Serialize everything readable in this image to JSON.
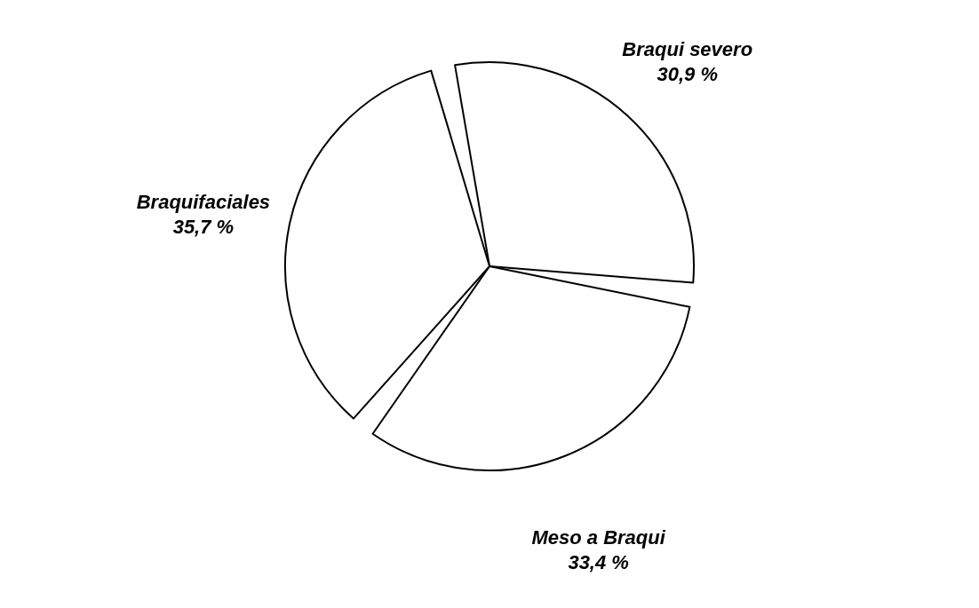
{
  "chart_data": {
    "type": "pie",
    "categories": [
      "Braqui severo",
      "Meso a Braqui",
      "Braquifaciales"
    ],
    "values": [
      30.9,
      33.4,
      35.7
    ],
    "value_labels": [
      "30,9 %",
      "33,4 %",
      "35,7 %"
    ],
    "colors": [
      "#ffffff",
      "#ffffff",
      "#ffffff"
    ]
  }
}
